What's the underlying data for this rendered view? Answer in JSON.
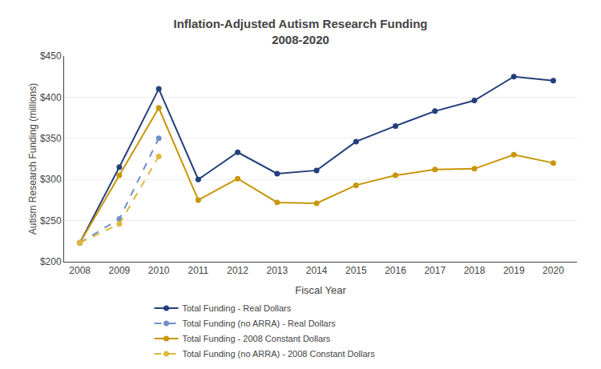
{
  "chart_data": {
    "type": "line",
    "title": "Inflation-Adjusted Autism Research Funding\n2008-2020",
    "x_label": "Fiscal Year",
    "y_label": "Autism Research Funding (millions)",
    "x": [
      2008,
      2009,
      2010,
      2011,
      2012,
      2013,
      2014,
      2015,
      2016,
      2017,
      2018,
      2019,
      2020
    ],
    "series": [
      {
        "name": "Total Funding - Real Dollars",
        "color": "#243f7a",
        "line_style": "solid",
        "marker": "circle",
        "values": [
          223,
          315,
          410,
          300,
          333,
          307,
          311,
          346,
          365,
          383,
          396,
          425,
          420
        ]
      },
      {
        "name": "Total Funding (no ARRA) - Real Dollars",
        "color": "#7090c8",
        "line_style": "dashed",
        "marker": "circle",
        "values": [
          223,
          252,
          350,
          null,
          null,
          null,
          null,
          null,
          null,
          null,
          null,
          null,
          null
        ]
      },
      {
        "name": "Total Funding - 2008 Constant Dollars",
        "color": "#c8960a",
        "line_style": "solid",
        "marker": "circle",
        "values": [
          223,
          305,
          387,
          275,
          301,
          272,
          271,
          293,
          305,
          312,
          313,
          330,
          320
        ]
      },
      {
        "name": "Total Funding (no ARRA) - 2008 Constant Dollars",
        "color": "#e0b840",
        "line_style": "dashed",
        "marker": "circle",
        "values": [
          223,
          246,
          328,
          null,
          null,
          null,
          null,
          null,
          null,
          null,
          null,
          null,
          null
        ]
      }
    ],
    "xlim": [
      2007.6,
      2020.6
    ],
    "xticks": [
      2008,
      2009,
      2010,
      2011,
      2012,
      2013,
      2014,
      2015,
      2016,
      2017,
      2018,
      2019,
      2020
    ],
    "ylim": [
      200,
      450
    ],
    "yticks": [
      {
        "value": 200,
        "label": "$200"
      },
      {
        "value": 250,
        "label": "$250"
      },
      {
        "value": 300,
        "label": "$300"
      },
      {
        "value": 350,
        "label": "$350"
      },
      {
        "value": 400,
        "label": "$400"
      },
      {
        "value": 450,
        "label": "$450"
      }
    ],
    "grid": "y",
    "legend": "bottom"
  }
}
